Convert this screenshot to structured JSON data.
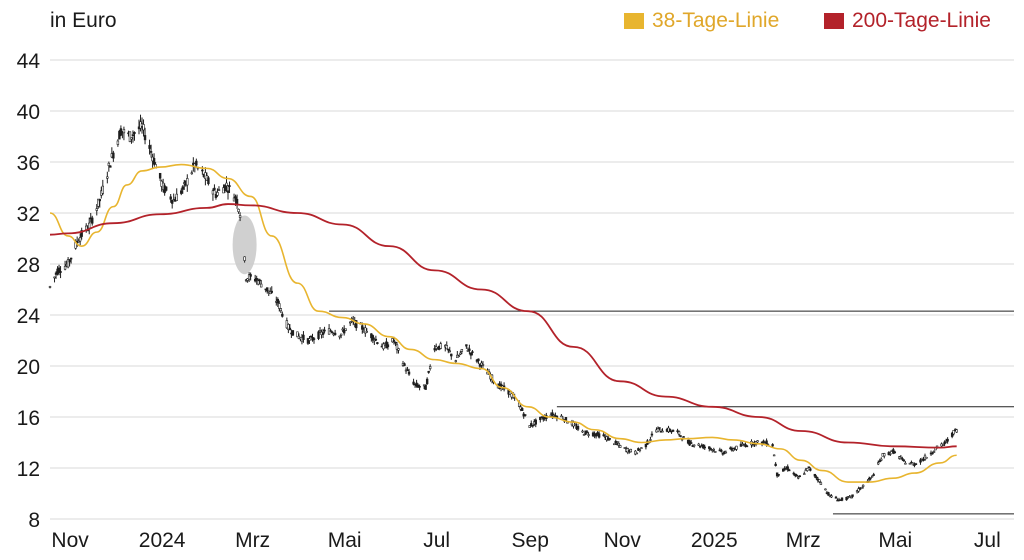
{
  "unit_label": "in Euro",
  "legend": [
    {
      "name": "38-Tage-Linie",
      "color": "#e8b52f",
      "text_color": "#e0a72a"
    },
    {
      "name": "200-Tage-Linie",
      "color": "#b3222a",
      "text_color": "#b3222a"
    }
  ],
  "chart_data": {
    "type": "candlestick",
    "unit": "in Euro",
    "x_range": [
      "2023-10-20",
      "2025-07-20"
    ],
    "ylim": [
      8,
      44
    ],
    "y_ticks": [
      8,
      12,
      16,
      20,
      24,
      28,
      32,
      36,
      40,
      44
    ],
    "x_ticks": [
      {
        "date": "2023-11-01",
        "label": "Nov"
      },
      {
        "date": "2024-01-01",
        "label": "2024"
      },
      {
        "date": "2024-03-01",
        "label": "Mrz"
      },
      {
        "date": "2024-05-01",
        "label": "Mai"
      },
      {
        "date": "2024-07-01",
        "label": "Jul"
      },
      {
        "date": "2024-09-01",
        "label": "Sep"
      },
      {
        "date": "2024-11-01",
        "label": "Nov"
      },
      {
        "date": "2025-01-01",
        "label": "2025"
      },
      {
        "date": "2025-03-01",
        "label": "Mrz"
      },
      {
        "date": "2025-05-01",
        "label": "Mai"
      },
      {
        "date": "2025-07-01",
        "label": "Jul"
      }
    ],
    "grid": true,
    "legend_position": "top-right",
    "price_anchors": [
      [
        "2023-10-20",
        26.2
      ],
      [
        "2023-10-25",
        27.5
      ],
      [
        "2023-11-01",
        28.0
      ],
      [
        "2023-11-08",
        30.0
      ],
      [
        "2023-11-15",
        31.0
      ],
      [
        "2023-11-22",
        33.0
      ],
      [
        "2023-11-29",
        36.0
      ],
      [
        "2023-12-06",
        38.5
      ],
      [
        "2023-12-12",
        38.0
      ],
      [
        "2023-12-20",
        38.8
      ],
      [
        "2023-12-27",
        36.5
      ],
      [
        "2024-01-03",
        34.0
      ],
      [
        "2024-01-10",
        33.0
      ],
      [
        "2024-01-17",
        34.0
      ],
      [
        "2024-01-24",
        35.8
      ],
      [
        "2024-01-31",
        34.8
      ],
      [
        "2024-02-07",
        33.5
      ],
      [
        "2024-02-14",
        34.2
      ],
      [
        "2024-02-21",
        33.0
      ],
      [
        "2024-02-23",
        32.0
      ],
      [
        "2024-02-27",
        27.0
      ],
      [
        "2024-03-05",
        26.8
      ],
      [
        "2024-03-12",
        26.0
      ],
      [
        "2024-03-19",
        25.0
      ],
      [
        "2024-03-26",
        23.0
      ],
      [
        "2024-04-02",
        22.3
      ],
      [
        "2024-04-09",
        22.0
      ],
      [
        "2024-04-16",
        22.5
      ],
      [
        "2024-04-23",
        22.8
      ],
      [
        "2024-04-30",
        22.5
      ],
      [
        "2024-05-07",
        23.5
      ],
      [
        "2024-05-14",
        23.0
      ],
      [
        "2024-05-21",
        22.3
      ],
      [
        "2024-05-28",
        21.5
      ],
      [
        "2024-06-04",
        22.0
      ],
      [
        "2024-06-11",
        20.0
      ],
      [
        "2024-06-18",
        18.5
      ],
      [
        "2024-06-25",
        18.3
      ],
      [
        "2024-07-01",
        21.5
      ],
      [
        "2024-07-08",
        21.5
      ],
      [
        "2024-07-15",
        20.5
      ],
      [
        "2024-07-22",
        21.5
      ],
      [
        "2024-07-29",
        20.5
      ],
      [
        "2024-08-05",
        19.5
      ],
      [
        "2024-08-12",
        18.5
      ],
      [
        "2024-08-19",
        18.0
      ],
      [
        "2024-08-26",
        17.0
      ],
      [
        "2024-09-02",
        15.3
      ],
      [
        "2024-09-09",
        15.8
      ],
      [
        "2024-09-16",
        16.2
      ],
      [
        "2024-09-23",
        16.0
      ],
      [
        "2024-09-30",
        15.5
      ],
      [
        "2024-10-07",
        14.8
      ],
      [
        "2024-10-14",
        14.7
      ],
      [
        "2024-10-21",
        14.5
      ],
      [
        "2024-10-28",
        14.0
      ],
      [
        "2024-11-04",
        13.5
      ],
      [
        "2024-11-11",
        13.2
      ],
      [
        "2024-11-18",
        13.8
      ],
      [
        "2024-11-25",
        15.0
      ],
      [
        "2024-12-02",
        15.0
      ],
      [
        "2024-12-09",
        14.8
      ],
      [
        "2024-12-16",
        14.0
      ],
      [
        "2024-12-23",
        13.8
      ],
      [
        "2025-01-01",
        13.5
      ],
      [
        "2025-01-08",
        13.2
      ],
      [
        "2025-01-15",
        13.5
      ],
      [
        "2025-01-22",
        13.8
      ],
      [
        "2025-01-29",
        14.0
      ],
      [
        "2025-02-05",
        14.0
      ],
      [
        "2025-02-10",
        13.8
      ],
      [
        "2025-02-13",
        11.5
      ],
      [
        "2025-02-20",
        12.0
      ],
      [
        "2025-02-27",
        11.2
      ],
      [
        "2025-03-06",
        12.0
      ],
      [
        "2025-03-13",
        11.0
      ],
      [
        "2025-03-20",
        9.8
      ],
      [
        "2025-03-27",
        9.5
      ],
      [
        "2025-04-03",
        9.7
      ],
      [
        "2025-04-10",
        10.5
      ],
      [
        "2025-04-17",
        11.3
      ],
      [
        "2025-04-24",
        13.0
      ],
      [
        "2025-05-01",
        13.3
      ],
      [
        "2025-05-08",
        12.5
      ],
      [
        "2025-05-15",
        12.3
      ],
      [
        "2025-05-22",
        12.8
      ],
      [
        "2025-05-29",
        13.5
      ],
      [
        "2025-06-05",
        14.0
      ],
      [
        "2025-06-10",
        14.8
      ],
      [
        "2025-06-12",
        15.0
      ]
    ],
    "series": [
      {
        "name": "38-Tage-Linie",
        "color": "#e8b52f",
        "points": [
          [
            "2023-10-20",
            32.0
          ],
          [
            "2023-11-01",
            30.2
          ],
          [
            "2023-11-10",
            29.4
          ],
          [
            "2023-11-20",
            30.5
          ],
          [
            "2023-12-01",
            32.5
          ],
          [
            "2023-12-10",
            34.2
          ],
          [
            "2023-12-20",
            35.3
          ],
          [
            "2024-01-01",
            35.6
          ],
          [
            "2024-01-15",
            35.8
          ],
          [
            "2024-02-01",
            35.5
          ],
          [
            "2024-02-15",
            34.7
          ],
          [
            "2024-03-01",
            33.3
          ],
          [
            "2024-03-15",
            30.2
          ],
          [
            "2024-04-01",
            26.5
          ],
          [
            "2024-04-15",
            24.3
          ],
          [
            "2024-05-01",
            23.8
          ],
          [
            "2024-05-15",
            23.3
          ],
          [
            "2024-06-01",
            22.3
          ],
          [
            "2024-06-15",
            21.3
          ],
          [
            "2024-07-01",
            20.5
          ],
          [
            "2024-07-15",
            20.2
          ],
          [
            "2024-08-01",
            19.8
          ],
          [
            "2024-08-15",
            18.3
          ],
          [
            "2024-09-01",
            16.8
          ],
          [
            "2024-09-15",
            16.0
          ],
          [
            "2024-10-01",
            15.6
          ],
          [
            "2024-10-15",
            15.0
          ],
          [
            "2024-11-01",
            14.3
          ],
          [
            "2024-11-15",
            14.0
          ],
          [
            "2024-12-01",
            14.2
          ],
          [
            "2024-12-15",
            14.3
          ],
          [
            "2025-01-01",
            14.4
          ],
          [
            "2025-01-15",
            14.2
          ],
          [
            "2025-02-01",
            13.9
          ],
          [
            "2025-02-15",
            13.5
          ],
          [
            "2025-03-01",
            12.6
          ],
          [
            "2025-03-15",
            11.8
          ],
          [
            "2025-04-01",
            10.9
          ],
          [
            "2025-04-15",
            10.9
          ],
          [
            "2025-05-01",
            11.2
          ],
          [
            "2025-05-15",
            11.6
          ],
          [
            "2025-06-01",
            12.4
          ],
          [
            "2025-06-12",
            13.0
          ]
        ]
      },
      {
        "name": "200-Tage-Linie",
        "color": "#b3222a",
        "points": [
          [
            "2023-10-20",
            30.3
          ],
          [
            "2023-11-01",
            30.4
          ],
          [
            "2023-12-01",
            31.2
          ],
          [
            "2024-01-01",
            31.9
          ],
          [
            "2024-02-01",
            32.4
          ],
          [
            "2024-02-15",
            32.7
          ],
          [
            "2024-03-01",
            32.6
          ],
          [
            "2024-04-01",
            32.0
          ],
          [
            "2024-05-01",
            31.1
          ],
          [
            "2024-06-01",
            29.4
          ],
          [
            "2024-07-01",
            27.5
          ],
          [
            "2024-08-01",
            26.0
          ],
          [
            "2024-09-01",
            24.3
          ],
          [
            "2024-10-01",
            21.5
          ],
          [
            "2024-11-01",
            18.8
          ],
          [
            "2024-12-01",
            17.6
          ],
          [
            "2025-01-01",
            16.8
          ],
          [
            "2025-02-01",
            16.0
          ],
          [
            "2025-03-01",
            14.9
          ],
          [
            "2025-04-01",
            14.0
          ],
          [
            "2025-05-01",
            13.7
          ],
          [
            "2025-06-01",
            13.6
          ],
          [
            "2025-06-12",
            13.7
          ]
        ]
      }
    ],
    "horizontal_lines": [
      {
        "y": 24.3,
        "from": "2024-04-22",
        "to": "2025-07-20"
      },
      {
        "y": 16.8,
        "from": "2024-09-20",
        "to": "2025-07-20"
      },
      {
        "y": 8.4,
        "from": "2025-03-22",
        "to": "2025-07-20"
      }
    ],
    "highlight": {
      "shape": "ellipse",
      "date": "2024-02-26",
      "y_from": 27.2,
      "y_to": 31.8
    }
  }
}
